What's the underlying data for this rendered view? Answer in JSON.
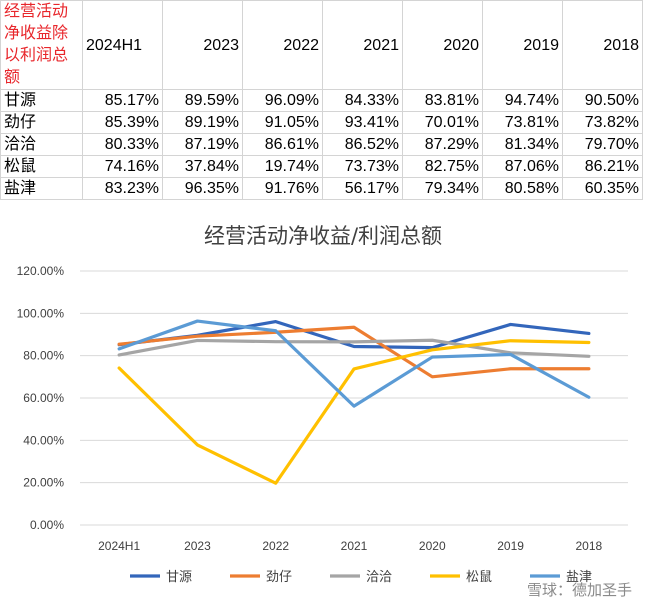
{
  "table": {
    "corner_label": "经营活动净收益除以利润总额",
    "columns": [
      "2024H1",
      "2023",
      "2022",
      "2021",
      "2020",
      "2019",
      "2018"
    ],
    "rows": [
      {
        "name": "甘源",
        "values": [
          "85.17%",
          "89.59%",
          "96.09%",
          "84.33%",
          "83.81%",
          "94.74%",
          "90.50%"
        ]
      },
      {
        "name": "劲仔",
        "values": [
          "85.39%",
          "89.19%",
          "91.05%",
          "93.41%",
          "70.01%",
          "73.81%",
          "73.82%"
        ]
      },
      {
        "name": "洽洽",
        "values": [
          "80.33%",
          "87.19%",
          "86.61%",
          "86.52%",
          "87.29%",
          "81.34%",
          "79.70%"
        ]
      },
      {
        "name": "松鼠",
        "values": [
          "74.16%",
          "37.84%",
          "19.74%",
          "73.73%",
          "82.75%",
          "87.06%",
          "86.21%"
        ]
      },
      {
        "name": "盐津",
        "values": [
          "83.23%",
          "96.35%",
          "91.76%",
          "56.17%",
          "79.34%",
          "80.58%",
          "60.35%"
        ]
      }
    ]
  },
  "chart_data": {
    "type": "line",
    "title": "经营活动净收益/利润总额",
    "categories": [
      "2024H1",
      "2023",
      "2022",
      "2021",
      "2020",
      "2019",
      "2018"
    ],
    "yticks": [
      "0.00%",
      "20.00%",
      "40.00%",
      "60.00%",
      "80.00%",
      "100.00%",
      "120.00%"
    ],
    "ylim": [
      0,
      120
    ],
    "grid": true,
    "legend_position": "bottom",
    "series": [
      {
        "name": "甘源",
        "color": "#3366bb",
        "values": [
          85.17,
          89.59,
          96.09,
          84.33,
          83.81,
          94.74,
          90.5
        ]
      },
      {
        "name": "劲仔",
        "color": "#ed7d31",
        "values": [
          85.39,
          89.19,
          91.05,
          93.41,
          70.01,
          73.81,
          73.82
        ]
      },
      {
        "name": "洽洽",
        "color": "#a5a5a5",
        "values": [
          80.33,
          87.19,
          86.61,
          86.52,
          87.29,
          81.34,
          79.7
        ]
      },
      {
        "name": "松鼠",
        "color": "#ffc000",
        "values": [
          74.16,
          37.84,
          19.74,
          73.73,
          82.75,
          87.06,
          86.21
        ]
      },
      {
        "name": "盐津",
        "color": "#5b9bd5",
        "values": [
          83.23,
          96.35,
          91.76,
          56.17,
          79.34,
          80.58,
          60.35
        ]
      }
    ]
  },
  "watermark": "雪球：德加圣手"
}
